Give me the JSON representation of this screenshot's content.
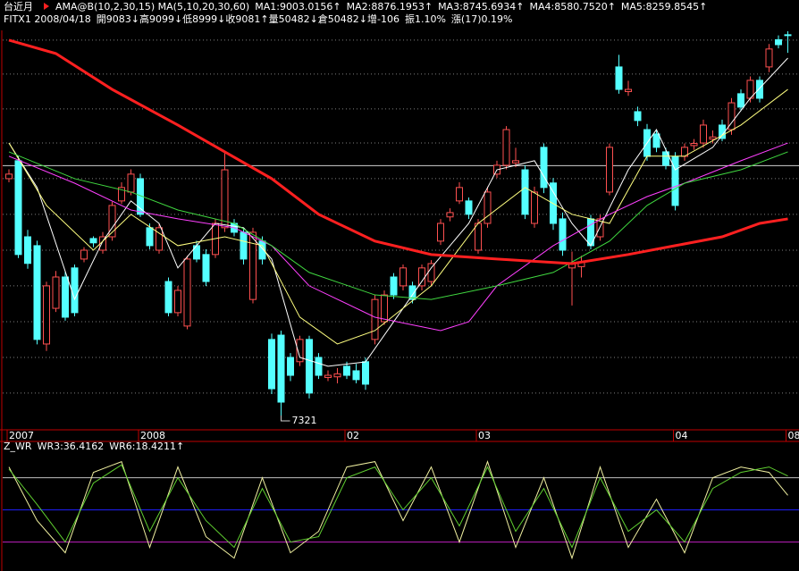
{
  "header": {
    "title": "台近月",
    "info": [
      {
        "text": "FITX1 2008/04/18",
        "color": "#ffffff"
      },
      {
        "text": "開9083↓高9099↓低8999↓收9081↑量50482↓倉50482↓增-106",
        "color": "#ffffff"
      },
      {
        "text": "振1.10%",
        "color": "#ffffff"
      },
      {
        "text": "漲(17)0.19%",
        "color": "#ff5050"
      }
    ]
  },
  "chart_data": [
    {
      "type": "candlestick",
      "title": "AMA@B(10,2,30,15) MA(5,10,20,30,60)",
      "up_color": "#ff5050",
      "down_color": "#54ffff",
      "ylim": [
        7259,
        9161
      ],
      "ygrid": [
        9058,
        8901,
        8740,
        8582,
        8417,
        8252,
        8086,
        7921,
        7755,
        7590,
        7425
      ],
      "reference_line": 8477,
      "categories": [
        "2007",
        null,
        null,
        null,
        null,
        null,
        null,
        null,
        null,
        null,
        null,
        null,
        null,
        null,
        "2008",
        null,
        null,
        null,
        null,
        null,
        null,
        null,
        null,
        null,
        null,
        null,
        null,
        null,
        null,
        null,
        null,
        null,
        null,
        null,
        null,
        null,
        "02",
        null,
        null,
        null,
        null,
        null,
        null,
        null,
        null,
        null,
        null,
        null,
        null,
        null,
        "03",
        null,
        null,
        null,
        null,
        null,
        null,
        null,
        null,
        null,
        null,
        null,
        null,
        null,
        null,
        null,
        null,
        null,
        null,
        null,
        null,
        "04",
        null,
        null,
        null,
        null,
        null,
        null,
        null,
        null,
        null,
        null,
        null,
        "08"
      ],
      "candles": [
        [
          8417,
          8460,
          8400,
          8438
        ],
        [
          8500,
          8520,
          8050,
          8066
        ],
        [
          8148,
          8180,
          8000,
          8025
        ],
        [
          8107,
          8130,
          7650,
          7673
        ],
        [
          7652,
          7940,
          7620,
          7921
        ],
        [
          7817,
          7990,
          7800,
          7962
        ],
        [
          7962,
          7990,
          7760,
          7776
        ],
        [
          8004,
          8020,
          7780,
          7797
        ],
        [
          8045,
          8100,
          8030,
          8086
        ],
        [
          8140,
          8150,
          8100,
          8120
        ],
        [
          8086,
          8170,
          8070,
          8148
        ],
        [
          8148,
          8310,
          8130,
          8293
        ],
        [
          8314,
          8400,
          8300,
          8376
        ],
        [
          8355,
          8460,
          8340,
          8438
        ],
        [
          8417,
          8440,
          8240,
          8252
        ],
        [
          8190,
          8210,
          8090,
          8107
        ],
        [
          8086,
          8210,
          8070,
          8190
        ],
        [
          7941,
          7960,
          7780,
          7797
        ],
        [
          7797,
          7920,
          7780,
          7900
        ],
        [
          7735,
          8060,
          7720,
          8045
        ],
        [
          8107,
          8130,
          8030,
          8045
        ],
        [
          8066,
          8090,
          7920,
          7941
        ],
        [
          8066,
          8230,
          8050,
          8210
        ],
        [
          8190,
          8540,
          8170,
          8458
        ],
        [
          8210,
          8230,
          8150,
          8169
        ],
        [
          8169,
          8190,
          8020,
          8045
        ],
        [
          7858,
          8190,
          7840,
          8169
        ],
        [
          8128,
          8150,
          8020,
          8045
        ],
        [
          7673,
          7700,
          7420,
          7445
        ],
        [
          7693,
          7714,
          7321,
          7383
        ],
        [
          7590,
          7610,
          7480,
          7507
        ],
        [
          7570,
          7690,
          7550,
          7673
        ],
        [
          7673,
          7690,
          7400,
          7425
        ],
        [
          7590,
          7610,
          7490,
          7507
        ],
        [
          7497,
          7530,
          7480,
          7507
        ],
        [
          7500,
          7540,
          7470,
          7514
        ],
        [
          7549,
          7570,
          7490,
          7507
        ],
        [
          7528,
          7560,
          7470,
          7487
        ],
        [
          7570,
          7590,
          7440,
          7466
        ],
        [
          7673,
          7880,
          7650,
          7858
        ],
        [
          7755,
          7900,
          7740,
          7879
        ],
        [
          7962,
          7980,
          7860,
          7879
        ],
        [
          7921,
          8020,
          7900,
          8004
        ],
        [
          7921,
          7940,
          7840,
          7858
        ],
        [
          7921,
          8020,
          7900,
          8004
        ],
        [
          7941,
          8040,
          7920,
          8024
        ],
        [
          8128,
          8230,
          8110,
          8210
        ],
        [
          8240,
          8280,
          8220,
          8260
        ],
        [
          8314,
          8400,
          8300,
          8376
        ],
        [
          8314,
          8330,
          8230,
          8252
        ],
        [
          8086,
          8230,
          8070,
          8210
        ],
        [
          8210,
          8380,
          8190,
          8355
        ],
        [
          8438,
          8500,
          8420,
          8479
        ],
        [
          8479,
          8660,
          8460,
          8644
        ],
        [
          8490,
          8560,
          8470,
          8500
        ],
        [
          8458,
          8480,
          8230,
          8252
        ],
        [
          8210,
          8380,
          8190,
          8355
        ],
        [
          8562,
          8580,
          8350,
          8376
        ],
        [
          8397,
          8420,
          8180,
          8210
        ],
        [
          8231,
          8260,
          8060,
          8086
        ],
        [
          8004,
          8080,
          7830,
          8024
        ],
        [
          8010,
          8060,
          7960,
          8030
        ],
        [
          8231,
          8250,
          8090,
          8107
        ],
        [
          8148,
          8250,
          8130,
          8231
        ],
        [
          8355,
          8580,
          8340,
          8562
        ],
        [
          8934,
          8990,
          8810,
          8830
        ],
        [
          8820,
          8870,
          8800,
          8830
        ],
        [
          8727,
          8750,
          8660,
          8686
        ],
        [
          8644,
          8670,
          8500,
          8520
        ],
        [
          8624,
          8640,
          8540,
          8562
        ],
        [
          8541,
          8560,
          8460,
          8479
        ],
        [
          8520,
          8540,
          8270,
          8293
        ],
        [
          8520,
          8580,
          8500,
          8562
        ],
        [
          8570,
          8600,
          8550,
          8580
        ],
        [
          8582,
          8690,
          8560,
          8665
        ],
        [
          8600,
          8640,
          8580,
          8610
        ],
        [
          8665,
          8690,
          8590,
          8603
        ],
        [
          8644,
          8790,
          8620,
          8768
        ],
        [
          8810,
          8830,
          8730,
          8748
        ],
        [
          8789,
          8890,
          8770,
          8872
        ],
        [
          8872,
          8890,
          8770,
          8789
        ],
        [
          8934,
          9040,
          8910,
          9017
        ],
        [
          9060,
          9080,
          9020,
          9037
        ],
        [
          9083,
          9099,
          8999,
          9081
        ]
      ],
      "series": [
        {
          "name": "MA1:9003.0156↑",
          "color": "#ffffff",
          "x": [
            0,
            3,
            7,
            10,
            13,
            16,
            18,
            22,
            25,
            28,
            31,
            34,
            38,
            41,
            45,
            49,
            52,
            56,
            60,
            62,
            66,
            69,
            71,
            75,
            79,
            83
          ],
          "values": [
            8582,
            8376,
            7859,
            8128,
            8314,
            8210,
            8004,
            8210,
            8190,
            8045,
            7590,
            7549,
            7569,
            7755,
            8004,
            8210,
            8458,
            8500,
            8210,
            8107,
            8458,
            8644,
            8458,
            8562,
            8789,
            8975
          ]
        },
        {
          "name": "MA2:8876.1953↑",
          "color": "#ffff80",
          "x": [
            0,
            4,
            9,
            13,
            18,
            23,
            27,
            31,
            35,
            39,
            45,
            50,
            55,
            60,
            64,
            68,
            72,
            78,
            83
          ],
          "values": [
            8582,
            8293,
            8086,
            8252,
            8107,
            8148,
            8107,
            7776,
            7652,
            7714,
            7921,
            8210,
            8376,
            8252,
            8210,
            8521,
            8521,
            8665,
            8830
          ]
        },
        {
          "name": "MA3:8745.6934↑",
          "color": "#ff40ff",
          "x": [
            0,
            7,
            13,
            18,
            24,
            28,
            32,
            39,
            46,
            49,
            52,
            58,
            64,
            68,
            72,
            78,
            83
          ],
          "values": [
            8521,
            8396,
            8272,
            8231,
            8190,
            8107,
            7921,
            7776,
            7714,
            7755,
            7921,
            8107,
            8252,
            8334,
            8396,
            8500,
            8582
          ]
        },
        {
          "name": "MA4:8580.7520↑",
          "color": "#40d840",
          "x": [
            0,
            7,
            13,
            18,
            24,
            28,
            32,
            39,
            45,
            52,
            58,
            64,
            68,
            72,
            78,
            83
          ],
          "values": [
            8541,
            8417,
            8355,
            8272,
            8210,
            8107,
            7983,
            7879,
            7858,
            7921,
            7983,
            8128,
            8293,
            8396,
            8458,
            8541
          ]
        },
        {
          "name": "MA5:8259.8545↑",
          "color": "#ff2020",
          "width": 3,
          "x": [
            0,
            5,
            11,
            18,
            23,
            28,
            33,
            39,
            45,
            52,
            60,
            66,
            71,
            76,
            80,
            83
          ],
          "values": [
            9058,
            8996,
            8830,
            8665,
            8541,
            8417,
            8252,
            8128,
            8066,
            8045,
            8024,
            8066,
            8107,
            8148,
            8210,
            8231
          ]
        }
      ],
      "annotations": [
        {
          "label": "7321",
          "value": 7321,
          "x": 29
        }
      ]
    },
    {
      "type": "line",
      "title": "Z_WR",
      "ylim": [
        107,
        -13
      ],
      "levels": [
        {
          "value": 20,
          "color": "#c0c0c0"
        },
        {
          "value": 50,
          "color": "#2020ff"
        },
        {
          "value": 80,
          "color": "#c020c0"
        }
      ],
      "series": [
        {
          "name": "WR3:36.4162",
          "color": "#f0f0a0",
          "x": [
            0,
            3,
            6,
            9,
            12,
            15,
            18,
            21,
            24,
            27,
            30,
            33,
            36,
            39,
            42,
            45,
            48,
            51,
            54,
            57,
            60,
            63,
            66,
            69,
            72,
            75,
            78,
            81,
            83
          ],
          "values": [
            10,
            60,
            90,
            15,
            5,
            85,
            10,
            75,
            95,
            20,
            90,
            70,
            10,
            5,
            60,
            10,
            80,
            5,
            85,
            20,
            95,
            10,
            85,
            40,
            90,
            20,
            10,
            15,
            36.4162
          ]
        },
        {
          "name": "WR6:18.4211↑",
          "color": "#60d030",
          "x": [
            0,
            3,
            6,
            9,
            12,
            15,
            18,
            21,
            24,
            27,
            30,
            33,
            36,
            39,
            42,
            45,
            48,
            51,
            54,
            57,
            60,
            63,
            66,
            69,
            72,
            75,
            78,
            81,
            83
          ],
          "values": [
            12,
            45,
            80,
            25,
            8,
            70,
            20,
            60,
            85,
            30,
            80,
            75,
            20,
            10,
            50,
            20,
            65,
            10,
            70,
            30,
            85,
            20,
            70,
            50,
            80,
            30,
            15,
            10,
            18.4211
          ]
        }
      ]
    }
  ]
}
